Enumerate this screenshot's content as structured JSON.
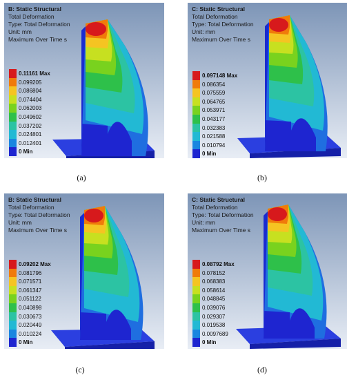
{
  "colors": [
    "#d7191c",
    "#f07b0a",
    "#f5c422",
    "#c7e020",
    "#79d21e",
    "#2ec04a",
    "#2cc3a3",
    "#22b9d4",
    "#1a86e0",
    "#1e25d0"
  ],
  "panels": [
    {
      "id": "a",
      "title": "B: Static Structural",
      "line1": "Total Deformation",
      "line2": "Type: Total Deformation",
      "line3": "Unit: mm",
      "line4": "Maximum Over Time s",
      "legend": [
        "0.11161 Max",
        "0.099205",
        "0.086804",
        "0.074404",
        "0.062003",
        "0.049602",
        "0.037202",
        "0.024801",
        "0.012401",
        "0 Min"
      ],
      "caption": "(a)"
    },
    {
      "id": "b",
      "title": "C: Static Structural",
      "line1": "Total Deformation",
      "line2": "Type: Total Deformation",
      "line3": "Unit: mm",
      "line4": "Maximum Over Time s",
      "legend": [
        "0.097148 Max",
        "0.086354",
        "0.075559",
        "0.064765",
        "0.053971",
        "0.043177",
        "0.032383",
        "0.021588",
        "0.010794",
        "0 Min"
      ],
      "caption": "(b)"
    },
    {
      "id": "c",
      "title": "B: Static Structural",
      "line1": "Total Deformation",
      "line2": "Type: Total Deformation",
      "line3": "Unit: mm",
      "line4": "Maximum Over Time s",
      "legend": [
        "0.09202 Max",
        "0.081796",
        "0.071571",
        "0.061347",
        "0.051122",
        "0.040898",
        "0.030673",
        "0.020449",
        "0.010224",
        "0 Min"
      ],
      "caption": "(c)"
    },
    {
      "id": "d",
      "title": "C: Static Structural",
      "line1": "Total Deformation",
      "line2": "Type: Total Deformation",
      "line3": "Unit: mm",
      "line4": "Maximum Over Time s",
      "legend": [
        "0.08792 Max",
        "0.078152",
        "0.068383",
        "0.058614",
        "0.048845",
        "0.039076",
        "0.029307",
        "0.019538",
        "0.0097689",
        "0 Min"
      ],
      "caption": "(d)"
    }
  ]
}
